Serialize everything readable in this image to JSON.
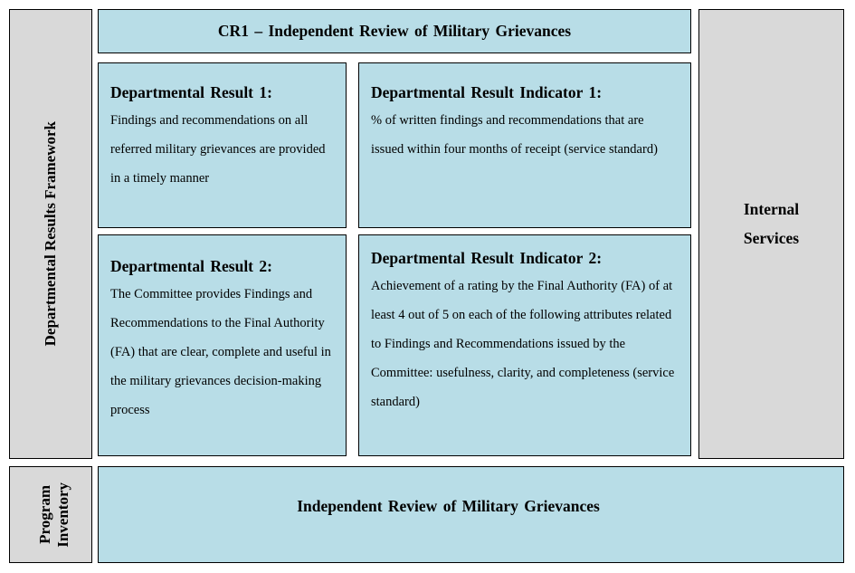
{
  "framework_label": "Departmental Results Framework",
  "core_responsibility": "CR1 – Independent  Review of Military Grievances",
  "results": [
    {
      "title": "Departmental  Result 1:",
      "text": "Findings and recommendations on all referred military grievances are provided in a timely manner"
    },
    {
      "title": "Departmental  Result 2:",
      "text": "The Committee provides Findings and Recommendations to the Final Authority (FA) that are clear, complete and useful in the military grievances decision-making process"
    }
  ],
  "indicators": [
    {
      "title": "Departmental  Result Indicator  1:",
      "text": "% of written findings and recommendations that are issued within four months of receipt (service standard)"
    },
    {
      "title": "Departmental  Result Indicator  2:",
      "text": "Achievement of a rating by the Final Authority (FA) of at least 4 out of 5 on each of the following attributes related to Findings and Recommendations issued by the Committee: usefulness, clarity, and completeness (service standard)"
    }
  ],
  "internal_services": "Internal Services",
  "program_inventory_label": {
    "line1": "Program",
    "line2": "Inventory"
  },
  "program": "Independent  Review of Military Grievances",
  "colors": {
    "blue_box": "#b8dde7",
    "grey_box": "#d9d9d9"
  }
}
